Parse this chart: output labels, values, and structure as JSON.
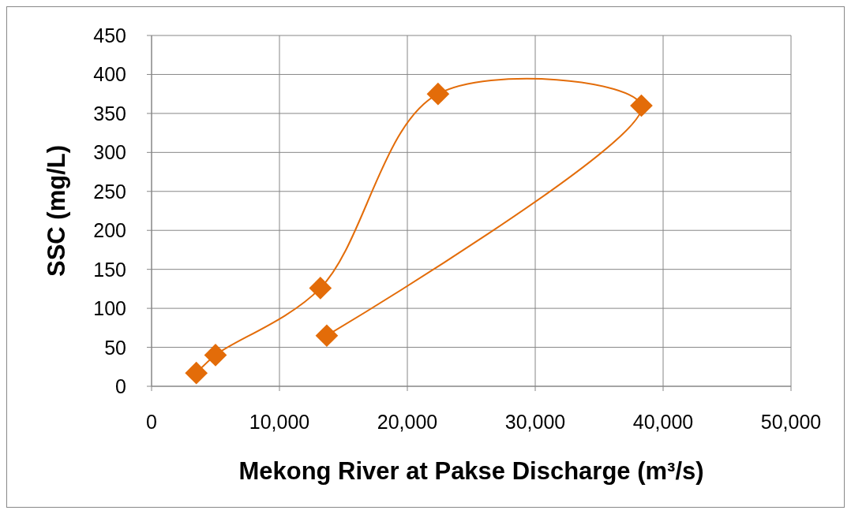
{
  "chart_data": {
    "type": "line",
    "xlabel": "Mekong River at Pakse Discharge (m³/s)",
    "ylabel": "SSC (mg/L)",
    "series": [
      {
        "color": "#e36c09",
        "x": [
          3500,
          5000,
          13200,
          22400,
          38300,
          13700
        ],
        "values": [
          17,
          40,
          126,
          375,
          360,
          65
        ]
      }
    ],
    "xlim": [
      0,
      50000
    ],
    "xticks": [
      {
        "value": 0,
        "label": "0"
      },
      {
        "value": 10000,
        "label": "10,000"
      },
      {
        "value": 20000,
        "label": "20,000"
      },
      {
        "value": 30000,
        "label": "30,000"
      },
      {
        "value": 40000,
        "label": "40,000"
      },
      {
        "value": 50000,
        "label": "50,000"
      }
    ],
    "ylim": [
      0,
      450
    ],
    "yticks": [
      0,
      50,
      100,
      150,
      200,
      250,
      300,
      350,
      400,
      450
    ],
    "grid": true,
    "marker": "diamond",
    "line_style": "solid"
  }
}
